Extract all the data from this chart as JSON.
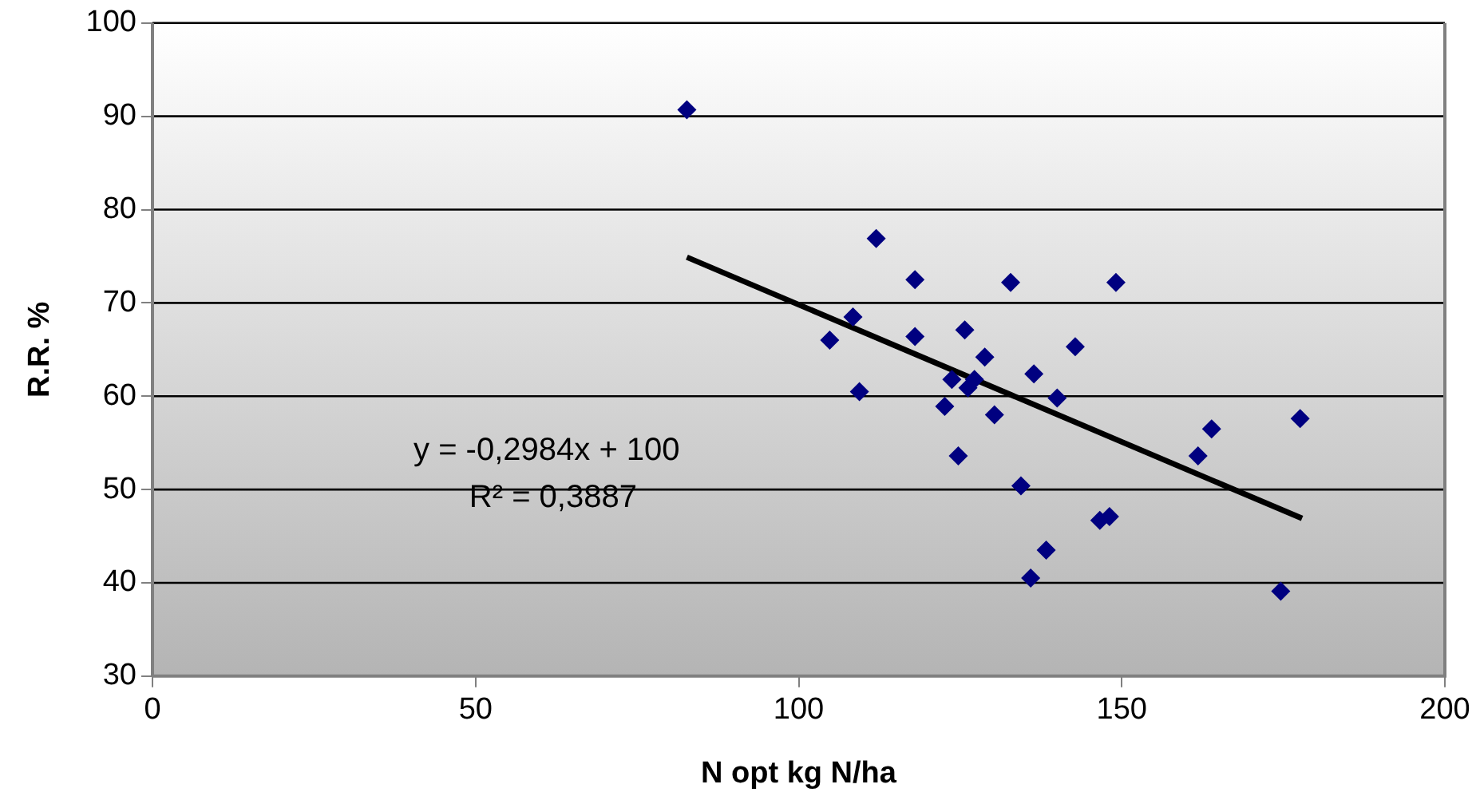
{
  "chart_data": {
    "type": "scatter",
    "xlabel": "N opt kg N/ha",
    "ylabel": "R.R. %",
    "xlim": [
      0,
      200
    ],
    "xticks": [
      0,
      50,
      100,
      150,
      200
    ],
    "ylim": [
      30,
      100
    ],
    "yticks": [
      30,
      40,
      50,
      60,
      70,
      80,
      90,
      100
    ],
    "grid": "y",
    "legend": false,
    "series": [
      {
        "color": "#000080",
        "marker": "diamond",
        "x": [
          82.7,
          112,
          118,
          132.8,
          149.1,
          108.4,
          104.8,
          118,
          125.7,
          128.8,
          136.4,
          142.8,
          109.4,
          123.7,
          127.2,
          126.2,
          140,
          122.6,
          130.3,
          124.7,
          134.4,
          138.3,
          135.9,
          146.6,
          148.1,
          174.6,
          177.6,
          163.9,
          161.8
        ],
        "values": [
          90.7,
          76.9,
          72.5,
          72.2,
          72.2,
          68.5,
          66,
          66.4,
          67.1,
          64.2,
          62.4,
          65.3,
          60.5,
          61.8,
          61.8,
          60.9,
          59.8,
          58.9,
          58,
          53.6,
          50.4,
          43.5,
          40.5,
          46.7,
          47.1,
          39.1,
          57.6,
          56.5,
          53.6
        ]
      },
      {
        "type": "line",
        "marker": "none",
        "color": "#000000",
        "x": [
          82.7,
          177.9
        ],
        "values": [
          74.9,
          46.9
        ]
      }
    ],
    "annotations": [
      "y = -0,2984x + 100",
      "R² = 0,3887"
    ]
  }
}
